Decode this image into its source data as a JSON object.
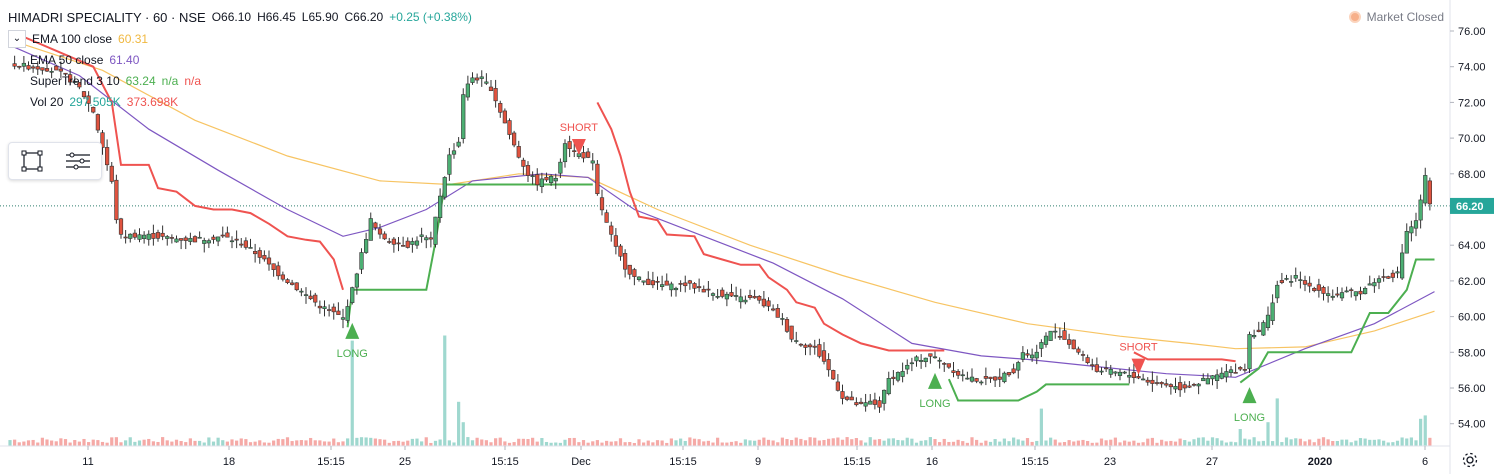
{
  "header": {
    "symbol": "HIMADRI SPECIALITY · 60 · NSE",
    "open": "O66.10",
    "high": "H66.45",
    "low": "L65.90",
    "close": "C66.20",
    "change": "+0.25 (+0.38%)"
  },
  "indicators": [
    {
      "name": "EMA 100 close",
      "value": "60.31",
      "color": "#f0b840"
    },
    {
      "name": "EMA 50 close",
      "value": "61.40",
      "color": "#7e57c2"
    },
    {
      "name": "SuperTrend 3 10",
      "value": "63.24",
      "value2": "n/a",
      "value3": "n/a",
      "color": "#4caf50"
    },
    {
      "name": "Vol 20",
      "value": "297.505K",
      "value2": "373.698K",
      "color": "#26a69a"
    }
  ],
  "market_status": "Market Closed",
  "last_price": "66.20",
  "colors": {
    "up": "#26a69a",
    "down": "#ef5350",
    "candle_up": "#3d8f5a",
    "candle_down": "#d84a3a",
    "supertrend_up": "#4caf50",
    "supertrend_down": "#ef5350",
    "ema100": "#f7c463",
    "ema50": "#7e57c2"
  },
  "chart_data": {
    "type": "candlestick",
    "price_axis": {
      "min": 54,
      "max": 76,
      "ticks": [
        "76.00",
        "74.00",
        "72.00",
        "70.00",
        "68.00",
        "66.00",
        "64.00",
        "62.00",
        "60.00",
        "58.00",
        "56.00",
        "54.00"
      ]
    },
    "time_axis": {
      "ticks": [
        "11",
        "18",
        "15:15",
        "25",
        "15:15",
        "Dec",
        "15:15",
        "9",
        "15:15",
        "16",
        "15:15",
        "23",
        "27",
        "2020",
        "6"
      ]
    },
    "signals": [
      {
        "label": "LONG",
        "type": "long"
      },
      {
        "label": "SHORT",
        "type": "short"
      },
      {
        "label": "LONG",
        "type": "long"
      },
      {
        "label": "SHORT",
        "type": "short"
      },
      {
        "label": "LONG",
        "type": "long"
      }
    ],
    "price_path": [
      [
        0,
        74.2
      ],
      [
        4,
        74.0
      ],
      [
        8,
        73.9
      ],
      [
        12,
        73.5
      ],
      [
        15,
        72.8
      ],
      [
        18,
        71.5
      ],
      [
        20,
        69.5
      ],
      [
        22,
        67.5
      ],
      [
        23,
        65.5
      ],
      [
        24,
        64.5
      ],
      [
        28,
        64.6
      ],
      [
        34,
        64.4
      ],
      [
        40,
        64.3
      ],
      [
        46,
        64.5
      ],
      [
        50,
        64.1
      ],
      [
        54,
        63.4
      ],
      [
        57,
        62.6
      ],
      [
        60,
        62.0
      ],
      [
        63,
        61.4
      ],
      [
        65,
        61.0
      ],
      [
        67,
        60.6
      ],
      [
        70,
        60.2
      ],
      [
        72,
        59.9
      ],
      [
        74,
        61.5
      ],
      [
        76,
        63.5
      ],
      [
        78,
        65.4
      ],
      [
        80,
        64.5
      ],
      [
        83,
        64.2
      ],
      [
        86,
        64.0
      ],
      [
        89,
        64.5
      ],
      [
        91,
        64.2
      ],
      [
        93,
        66.8
      ],
      [
        95,
        69.0
      ],
      [
        97,
        69.8
      ],
      [
        98,
        72.5
      ],
      [
        100,
        73.4
      ],
      [
        102,
        73.3
      ],
      [
        104,
        72.8
      ],
      [
        106,
        71.5
      ],
      [
        108,
        70.2
      ],
      [
        110,
        69.0
      ],
      [
        112,
        68.0
      ],
      [
        114,
        67.5
      ],
      [
        116,
        67.7
      ],
      [
        118,
        67.8
      ],
      [
        120,
        69.8
      ],
      [
        122,
        69.2
      ],
      [
        124,
        69.0
      ],
      [
        126,
        68.6
      ],
      [
        127,
        66.8
      ],
      [
        129,
        65.2
      ],
      [
        131,
        63.8
      ],
      [
        133,
        62.8
      ],
      [
        135,
        62.2
      ],
      [
        137,
        62.0
      ],
      [
        140,
        61.8
      ],
      [
        143,
        61.7
      ],
      [
        146,
        61.8
      ],
      [
        149,
        61.6
      ],
      [
        152,
        61.3
      ],
      [
        155,
        61.2
      ],
      [
        158,
        61.0
      ],
      [
        161,
        61.0
      ],
      [
        164,
        60.5
      ],
      [
        167,
        59.8
      ],
      [
        169,
        58.8
      ],
      [
        171,
        58.5
      ],
      [
        174,
        58.2
      ],
      [
        176,
        57.5
      ],
      [
        178,
        56.5
      ],
      [
        180,
        55.5
      ],
      [
        182,
        55.2
      ],
      [
        184,
        55.0
      ],
      [
        186,
        55.2
      ],
      [
        188,
        55.0
      ],
      [
        190,
        56.5
      ],
      [
        193,
        57.0
      ],
      [
        196,
        57.6
      ],
      [
        199,
        57.8
      ],
      [
        202,
        57.4
      ],
      [
        205,
        56.8
      ],
      [
        208,
        56.5
      ],
      [
        211,
        56.4
      ],
      [
        214,
        56.6
      ],
      [
        217,
        57.0
      ],
      [
        219,
        58.0
      ],
      [
        221,
        57.8
      ],
      [
        223,
        58.5
      ],
      [
        225,
        59.2
      ],
      [
        227,
        59.0
      ],
      [
        229,
        58.5
      ],
      [
        231,
        58.0
      ],
      [
        233,
        57.5
      ],
      [
        235,
        57.0
      ],
      [
        238,
        56.9
      ],
      [
        241,
        56.8
      ],
      [
        244,
        56.6
      ],
      [
        247,
        56.3
      ],
      [
        250,
        56.2
      ],
      [
        253,
        56.0
      ],
      [
        256,
        56.2
      ],
      [
        259,
        56.5
      ],
      [
        262,
        56.8
      ],
      [
        265,
        57.0
      ],
      [
        267,
        57.1
      ],
      [
        268,
        59.0
      ],
      [
        270,
        59.2
      ],
      [
        272,
        60.0
      ],
      [
        274,
        61.8
      ],
      [
        276,
        62.0
      ],
      [
        278,
        62.2
      ],
      [
        280,
        61.8
      ],
      [
        283,
        61.5
      ],
      [
        286,
        61.2
      ],
      [
        289,
        61.3
      ],
      [
        292,
        61.4
      ],
      [
        295,
        62.0
      ],
      [
        297,
        62.2
      ],
      [
        300,
        62.4
      ],
      [
        302,
        64.8
      ],
      [
        304,
        65.3
      ],
      [
        306,
        67.8
      ],
      [
        307,
        66.2
      ]
    ],
    "supertrend": [
      {
        "dir": "down",
        "pts": [
          [
            0,
            76.0
          ],
          [
            18,
            74.0
          ],
          [
            22,
            72.0
          ],
          [
            24,
            68.5
          ],
          [
            30,
            68.5
          ],
          [
            32,
            67.2
          ],
          [
            36,
            67.0
          ],
          [
            40,
            66.2
          ],
          [
            44,
            66.0
          ],
          [
            48,
            66.0
          ],
          [
            52,
            65.8
          ],
          [
            56,
            65.2
          ],
          [
            60,
            64.5
          ],
          [
            64,
            64.3
          ],
          [
            67,
            64.2
          ],
          [
            70,
            63.2
          ],
          [
            72,
            61.5
          ]
        ]
      },
      {
        "dir": "up",
        "pts": [
          [
            73,
            59.4
          ],
          [
            74,
            61.5
          ],
          [
            90,
            61.5
          ],
          [
            92,
            64.2
          ],
          [
            94,
            67.4
          ],
          [
            120,
            67.4
          ],
          [
            124,
            67.4
          ],
          [
            126,
            67.4
          ]
        ]
      },
      {
        "dir": "down",
        "pts": [
          [
            127,
            72.0
          ],
          [
            130,
            70.5
          ],
          [
            132,
            69.0
          ],
          [
            134,
            67.0
          ],
          [
            136,
            65.6
          ],
          [
            140,
            65.4
          ],
          [
            142,
            64.6
          ],
          [
            148,
            64.5
          ],
          [
            150,
            63.5
          ],
          [
            154,
            63.2
          ],
          [
            158,
            62.9
          ],
          [
            162,
            62.9
          ],
          [
            164,
            62.2
          ],
          [
            168,
            61.5
          ],
          [
            170,
            60.8
          ],
          [
            174,
            60.5
          ],
          [
            176,
            59.6
          ],
          [
            180,
            59.0
          ],
          [
            184,
            58.5
          ],
          [
            190,
            58.1
          ],
          [
            200,
            58.1
          ],
          [
            202,
            58.1
          ]
        ]
      },
      {
        "dir": "up",
        "pts": [
          [
            203,
            56.5
          ],
          [
            205,
            55.3
          ],
          [
            218,
            55.3
          ],
          [
            222,
            55.8
          ],
          [
            224,
            56.2
          ],
          [
            240,
            56.2
          ],
          [
            242,
            56.2
          ]
        ]
      },
      {
        "dir": "down",
        "pts": [
          [
            243,
            58.0
          ],
          [
            246,
            57.6
          ],
          [
            262,
            57.6
          ],
          [
            265,
            57.5
          ]
        ]
      },
      {
        "dir": "up",
        "pts": [
          [
            266,
            56.3
          ],
          [
            270,
            57.1
          ],
          [
            272,
            58.0
          ],
          [
            290,
            58.0
          ],
          [
            294,
            60.2
          ],
          [
            298,
            60.2
          ],
          [
            302,
            61.5
          ],
          [
            304,
            63.2
          ],
          [
            308,
            63.2
          ]
        ]
      }
    ],
    "ema100": [
      [
        0,
        75.5
      ],
      [
        20,
        73.8
      ],
      [
        40,
        71.0
      ],
      [
        60,
        69.0
      ],
      [
        80,
        67.6
      ],
      [
        95,
        67.4
      ],
      [
        110,
        68.0
      ],
      [
        125,
        67.8
      ],
      [
        140,
        66.0
      ],
      [
        160,
        64.0
      ],
      [
        180,
        62.3
      ],
      [
        200,
        60.8
      ],
      [
        220,
        59.6
      ],
      [
        240,
        58.9
      ],
      [
        255,
        58.5
      ],
      [
        265,
        58.2
      ],
      [
        280,
        58.3
      ],
      [
        295,
        59.2
      ],
      [
        308,
        60.3
      ]
    ],
    "ema50": [
      [
        0,
        75.2
      ],
      [
        15,
        73.5
      ],
      [
        30,
        70.5
      ],
      [
        45,
        68.2
      ],
      [
        60,
        66.0
      ],
      [
        72,
        64.5
      ],
      [
        80,
        65.0
      ],
      [
        90,
        66.0
      ],
      [
        100,
        67.6
      ],
      [
        115,
        68.0
      ],
      [
        125,
        67.8
      ],
      [
        135,
        66.0
      ],
      [
        150,
        64.5
      ],
      [
        165,
        63.0
      ],
      [
        180,
        61.0
      ],
      [
        195,
        58.5
      ],
      [
        210,
        57.8
      ],
      [
        220,
        57.6
      ],
      [
        235,
        57.2
      ],
      [
        250,
        56.8
      ],
      [
        265,
        56.6
      ],
      [
        280,
        58.2
      ],
      [
        295,
        59.6
      ],
      [
        308,
        61.4
      ]
    ],
    "volume_spikes": [
      [
        74,
        0.62
      ],
      [
        94,
        0.65
      ],
      [
        97,
        0.26
      ],
      [
        98,
        0.14
      ],
      [
        223,
        0.22
      ],
      [
        266,
        0.1
      ],
      [
        272,
        0.14
      ],
      [
        274,
        0.28
      ],
      [
        305,
        0.16
      ],
      [
        306,
        0.18
      ]
    ]
  }
}
